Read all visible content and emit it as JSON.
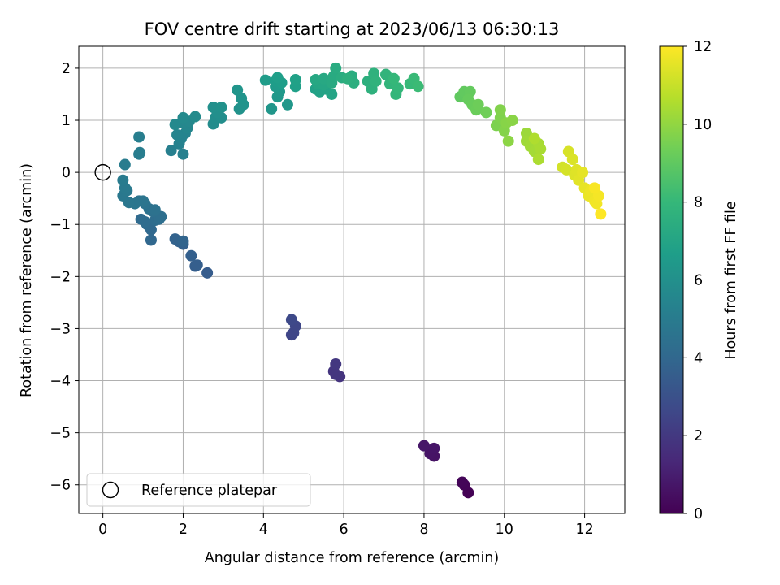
{
  "chart_data": {
    "type": "scatter",
    "title": "FOV centre drift starting at 2023/06/13 06:30:13",
    "xlabel": "Angular distance from reference (arcmin)",
    "ylabel": "Rotation from reference (arcmin)",
    "xlim": [
      -0.6,
      13.0
    ],
    "ylim": [
      -6.55,
      2.42
    ],
    "xticks": [
      0,
      2,
      4,
      6,
      8,
      10,
      12
    ],
    "yticks": [
      -6,
      -5,
      -4,
      -3,
      -2,
      -1,
      0,
      1,
      2
    ],
    "xtick_labels": [
      "0",
      "2",
      "4",
      "6",
      "8",
      "10",
      "12"
    ],
    "ytick_labels": [
      "−6",
      "−5",
      "−4",
      "−3",
      "−2",
      "−1",
      "0",
      "1",
      "2"
    ],
    "grid": true,
    "legend": {
      "placement": "lower-left",
      "label": "Reference platepar"
    },
    "reference_point": {
      "x": 0,
      "y": 0
    },
    "colorbar": {
      "label": "Hours from first FF file",
      "range": [
        0,
        12
      ],
      "ticks": [
        0,
        2,
        4,
        6,
        8,
        10,
        12
      ],
      "tick_labels": [
        "0",
        "2",
        "4",
        "6",
        "8",
        "10",
        "12"
      ],
      "colormap": "viridis",
      "colors": [
        "#440154",
        "#482878",
        "#3e4989",
        "#31688e",
        "#26828e",
        "#1f9e89",
        "#35b779",
        "#6ece58",
        "#b5de2b",
        "#fde725"
      ]
    },
    "points": [
      {
        "x": 9.1,
        "y": -6.15,
        "t": 0.05
      },
      {
        "x": 9.0,
        "y": -6.0,
        "t": 0.1
      },
      {
        "x": 8.95,
        "y": -5.95,
        "t": 0.15
      },
      {
        "x": 8.25,
        "y": -5.45,
        "t": 0.6
      },
      {
        "x": 8.15,
        "y": -5.4,
        "t": 0.65
      },
      {
        "x": 8.25,
        "y": -5.3,
        "t": 0.7
      },
      {
        "x": 8.0,
        "y": -5.25,
        "t": 0.75
      },
      {
        "x": 5.9,
        "y": -3.92,
        "t": 1.8
      },
      {
        "x": 5.75,
        "y": -3.82,
        "t": 1.85
      },
      {
        "x": 5.8,
        "y": -3.88,
        "t": 1.9
      },
      {
        "x": 5.8,
        "y": -3.68,
        "t": 1.95
      },
      {
        "x": 4.7,
        "y": -3.12,
        "t": 2.5
      },
      {
        "x": 4.75,
        "y": -3.08,
        "t": 2.55
      },
      {
        "x": 4.8,
        "y": -2.95,
        "t": 2.6
      },
      {
        "x": 4.7,
        "y": -2.83,
        "t": 2.65
      },
      {
        "x": 2.6,
        "y": -1.93,
        "t": 3.5
      },
      {
        "x": 2.3,
        "y": -1.8,
        "t": 3.55
      },
      {
        "x": 2.35,
        "y": -1.78,
        "t": 3.6
      },
      {
        "x": 2.2,
        "y": -1.6,
        "t": 3.65
      },
      {
        "x": 2.0,
        "y": -1.38,
        "t": 3.7
      },
      {
        "x": 1.9,
        "y": -1.33,
        "t": 3.75
      },
      {
        "x": 1.8,
        "y": -1.28,
        "t": 3.8
      },
      {
        "x": 2.0,
        "y": -1.32,
        "t": 3.85
      },
      {
        "x": 1.2,
        "y": -1.3,
        "t": 4.0
      },
      {
        "x": 1.2,
        "y": -1.1,
        "t": 4.05
      },
      {
        "x": 1.1,
        "y": -1.0,
        "t": 4.1
      },
      {
        "x": 0.95,
        "y": -0.9,
        "t": 4.15
      },
      {
        "x": 1.05,
        "y": -0.95,
        "t": 4.2
      },
      {
        "x": 1.3,
        "y": -0.92,
        "t": 4.25
      },
      {
        "x": 1.4,
        "y": -0.9,
        "t": 4.3
      },
      {
        "x": 1.45,
        "y": -0.85,
        "t": 4.35
      },
      {
        "x": 1.25,
        "y": -0.75,
        "t": 4.4
      },
      {
        "x": 1.15,
        "y": -0.7,
        "t": 4.45
      },
      {
        "x": 1.3,
        "y": -0.72,
        "t": 4.5
      },
      {
        "x": 1.05,
        "y": -0.6,
        "t": 4.55
      },
      {
        "x": 0.9,
        "y": -0.55,
        "t": 4.6
      },
      {
        "x": 1.0,
        "y": -0.55,
        "t": 4.65
      },
      {
        "x": 0.8,
        "y": -0.6,
        "t": 4.7
      },
      {
        "x": 0.65,
        "y": -0.58,
        "t": 4.75
      },
      {
        "x": 0.5,
        "y": -0.45,
        "t": 4.8
      },
      {
        "x": 0.6,
        "y": -0.35,
        "t": 4.85
      },
      {
        "x": 0.55,
        "y": -0.3,
        "t": 4.9
      },
      {
        "x": 0.5,
        "y": -0.15,
        "t": 4.95
      },
      {
        "x": 0.55,
        "y": 0.15,
        "t": 5.0
      },
      {
        "x": 0.9,
        "y": 0.35,
        "t": 5.05
      },
      {
        "x": 0.92,
        "y": 0.38,
        "t": 5.1
      },
      {
        "x": 0.9,
        "y": 0.68,
        "t": 5.15
      },
      {
        "x": 1.7,
        "y": 0.42,
        "t": 5.2
      },
      {
        "x": 2.0,
        "y": 0.35,
        "t": 5.25
      },
      {
        "x": 1.9,
        "y": 0.55,
        "t": 5.3
      },
      {
        "x": 1.95,
        "y": 0.65,
        "t": 5.35
      },
      {
        "x": 2.05,
        "y": 0.75,
        "t": 5.4
      },
      {
        "x": 1.85,
        "y": 0.72,
        "t": 5.45
      },
      {
        "x": 2.1,
        "y": 0.85,
        "t": 5.5
      },
      {
        "x": 2.0,
        "y": 0.95,
        "t": 5.55
      },
      {
        "x": 2.15,
        "y": 0.98,
        "t": 5.6
      },
      {
        "x": 1.8,
        "y": 0.92,
        "t": 5.65
      },
      {
        "x": 2.0,
        "y": 1.05,
        "t": 5.7
      },
      {
        "x": 2.3,
        "y": 1.07,
        "t": 5.75
      },
      {
        "x": 2.75,
        "y": 0.93,
        "t": 5.8
      },
      {
        "x": 2.8,
        "y": 1.05,
        "t": 5.85
      },
      {
        "x": 2.95,
        "y": 1.05,
        "t": 5.9
      },
      {
        "x": 2.85,
        "y": 1.15,
        "t": 5.95
      },
      {
        "x": 2.75,
        "y": 1.25,
        "t": 6.0
      },
      {
        "x": 2.95,
        "y": 1.25,
        "t": 6.05
      },
      {
        "x": 3.4,
        "y": 1.22,
        "t": 6.1
      },
      {
        "x": 3.5,
        "y": 1.3,
        "t": 6.15
      },
      {
        "x": 3.45,
        "y": 1.42,
        "t": 6.2
      },
      {
        "x": 3.35,
        "y": 1.58,
        "t": 6.25
      },
      {
        "x": 4.2,
        "y": 1.22,
        "t": 6.3
      },
      {
        "x": 4.6,
        "y": 1.3,
        "t": 6.35
      },
      {
        "x": 4.35,
        "y": 1.45,
        "t": 6.4
      },
      {
        "x": 4.4,
        "y": 1.55,
        "t": 6.45
      },
      {
        "x": 4.3,
        "y": 1.65,
        "t": 6.5
      },
      {
        "x": 4.05,
        "y": 1.77,
        "t": 6.55
      },
      {
        "x": 4.3,
        "y": 1.75,
        "t": 6.6
      },
      {
        "x": 4.45,
        "y": 1.72,
        "t": 6.65
      },
      {
        "x": 4.35,
        "y": 1.82,
        "t": 6.7
      },
      {
        "x": 4.8,
        "y": 1.65,
        "t": 6.75
      },
      {
        "x": 4.8,
        "y": 1.78,
        "t": 6.8
      },
      {
        "x": 5.3,
        "y": 1.6,
        "t": 6.85
      },
      {
        "x": 5.4,
        "y": 1.55,
        "t": 6.9
      },
      {
        "x": 5.55,
        "y": 1.6,
        "t": 6.95
      },
      {
        "x": 5.7,
        "y": 1.5,
        "t": 7.0
      },
      {
        "x": 5.35,
        "y": 1.7,
        "t": 7.05
      },
      {
        "x": 5.5,
        "y": 1.68,
        "t": 7.1
      },
      {
        "x": 5.3,
        "y": 1.78,
        "t": 7.15
      },
      {
        "x": 5.5,
        "y": 1.8,
        "t": 7.2
      },
      {
        "x": 5.7,
        "y": 1.72,
        "t": 7.25
      },
      {
        "x": 5.75,
        "y": 1.85,
        "t": 7.3
      },
      {
        "x": 5.8,
        "y": 2.0,
        "t": 7.35
      },
      {
        "x": 5.95,
        "y": 1.82,
        "t": 7.4
      },
      {
        "x": 6.2,
        "y": 1.85,
        "t": 7.45
      },
      {
        "x": 6.25,
        "y": 1.72,
        "t": 7.5
      },
      {
        "x": 6.1,
        "y": 1.8,
        "t": 7.55
      },
      {
        "x": 6.6,
        "y": 1.75,
        "t": 7.6
      },
      {
        "x": 6.7,
        "y": 1.6,
        "t": 7.65
      },
      {
        "x": 6.75,
        "y": 1.9,
        "t": 7.7
      },
      {
        "x": 6.8,
        "y": 1.75,
        "t": 7.75
      },
      {
        "x": 7.05,
        "y": 1.88,
        "t": 7.8
      },
      {
        "x": 7.15,
        "y": 1.7,
        "t": 7.85
      },
      {
        "x": 7.3,
        "y": 1.5,
        "t": 7.9
      },
      {
        "x": 7.35,
        "y": 1.62,
        "t": 7.95
      },
      {
        "x": 7.25,
        "y": 1.8,
        "t": 8.0
      },
      {
        "x": 7.65,
        "y": 1.7,
        "t": 8.05
      },
      {
        "x": 7.75,
        "y": 1.8,
        "t": 8.1
      },
      {
        "x": 7.85,
        "y": 1.65,
        "t": 8.15
      },
      {
        "x": 8.9,
        "y": 1.45,
        "t": 9.0
      },
      {
        "x": 9.0,
        "y": 1.55,
        "t": 9.05
      },
      {
        "x": 9.15,
        "y": 1.55,
        "t": 9.1
      },
      {
        "x": 9.1,
        "y": 1.4,
        "t": 9.15
      },
      {
        "x": 9.2,
        "y": 1.3,
        "t": 9.2
      },
      {
        "x": 9.3,
        "y": 1.2,
        "t": 9.25
      },
      {
        "x": 9.35,
        "y": 1.3,
        "t": 9.3
      },
      {
        "x": 9.55,
        "y": 1.15,
        "t": 9.35
      },
      {
        "x": 9.8,
        "y": 0.9,
        "t": 9.6
      },
      {
        "x": 9.9,
        "y": 1.05,
        "t": 9.65
      },
      {
        "x": 9.9,
        "y": 1.2,
        "t": 9.7
      },
      {
        "x": 10.0,
        "y": 0.8,
        "t": 9.75
      },
      {
        "x": 10.05,
        "y": 0.95,
        "t": 9.8
      },
      {
        "x": 10.2,
        "y": 1.0,
        "t": 9.85
      },
      {
        "x": 10.1,
        "y": 0.6,
        "t": 9.9
      },
      {
        "x": 10.55,
        "y": 0.75,
        "t": 10.2
      },
      {
        "x": 10.55,
        "y": 0.6,
        "t": 10.25
      },
      {
        "x": 10.65,
        "y": 0.5,
        "t": 10.3
      },
      {
        "x": 10.75,
        "y": 0.4,
        "t": 10.35
      },
      {
        "x": 10.85,
        "y": 0.55,
        "t": 10.4
      },
      {
        "x": 10.9,
        "y": 0.45,
        "t": 10.45
      },
      {
        "x": 10.85,
        "y": 0.25,
        "t": 10.5
      },
      {
        "x": 10.75,
        "y": 0.65,
        "t": 10.55
      },
      {
        "x": 11.45,
        "y": 0.1,
        "t": 11.2
      },
      {
        "x": 11.55,
        "y": 0.05,
        "t": 11.25
      },
      {
        "x": 11.6,
        "y": 0.4,
        "t": 11.3
      },
      {
        "x": 11.7,
        "y": 0.25,
        "t": 11.35
      },
      {
        "x": 11.75,
        "y": -0.05,
        "t": 11.4
      },
      {
        "x": 11.8,
        "y": 0.05,
        "t": 11.45
      },
      {
        "x": 11.85,
        "y": -0.15,
        "t": 11.5
      },
      {
        "x": 11.95,
        "y": 0.0,
        "t": 11.55
      },
      {
        "x": 12.0,
        "y": -0.3,
        "t": 11.6
      },
      {
        "x": 12.1,
        "y": -0.45,
        "t": 11.65
      },
      {
        "x": 12.15,
        "y": -0.35,
        "t": 11.7
      },
      {
        "x": 12.25,
        "y": -0.55,
        "t": 11.75
      },
      {
        "x": 12.3,
        "y": -0.6,
        "t": 11.8
      },
      {
        "x": 12.35,
        "y": -0.45,
        "t": 11.85
      },
      {
        "x": 12.25,
        "y": -0.3,
        "t": 11.9
      },
      {
        "x": 12.4,
        "y": -0.8,
        "t": 12.0
      }
    ]
  }
}
